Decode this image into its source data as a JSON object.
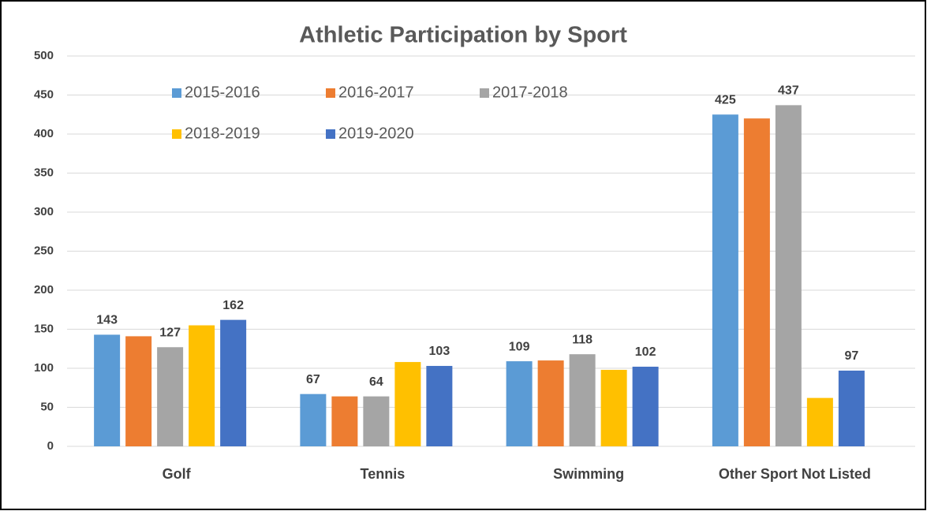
{
  "chart_data": {
    "type": "bar",
    "title": "Athletic Participation by Sport",
    "categories": [
      "Golf",
      "Tennis",
      "Swimming",
      "Other Sport Not Listed"
    ],
    "series": [
      {
        "name": "2015-2016",
        "color": "#5b9bd5",
        "values": [
          143,
          67,
          109,
          425
        ],
        "value_labels": [
          "143",
          "67",
          "109",
          "425"
        ]
      },
      {
        "name": "2016-2017",
        "color": "#ed7d31",
        "values": [
          141,
          64,
          110,
          420
        ],
        "value_labels": [
          null,
          null,
          null,
          null
        ]
      },
      {
        "name": "2017-2018",
        "color": "#a5a5a5",
        "values": [
          127,
          64,
          118,
          437
        ],
        "value_labels": [
          "127",
          "64",
          "118",
          "437"
        ]
      },
      {
        "name": "2018-2019",
        "color": "#ffc000",
        "values": [
          155,
          108,
          98,
          62
        ],
        "value_labels": [
          null,
          null,
          null,
          null
        ]
      },
      {
        "name": "2019-2020",
        "color": "#4472c4",
        "values": [
          162,
          103,
          102,
          97
        ],
        "value_labels": [
          "162",
          "103",
          "102",
          "97"
        ]
      }
    ],
    "ylim": [
      0,
      500
    ],
    "yticks": [
      0,
      50,
      100,
      150,
      200,
      250,
      300,
      350,
      400,
      450,
      500
    ],
    "grid": true,
    "legend": "top-left"
  }
}
